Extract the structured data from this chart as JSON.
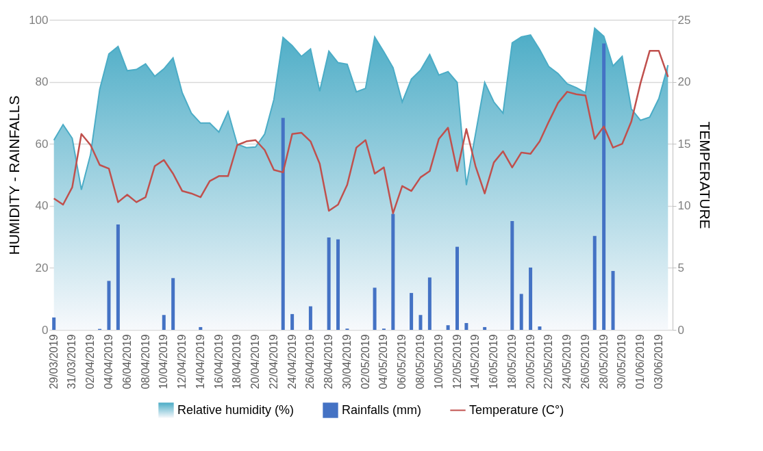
{
  "chart_data": {
    "type": "area",
    "categories": [
      "29/03/2019",
      null,
      "31/03/2019",
      null,
      "02/04/2019",
      null,
      "04/04/2019",
      null,
      "06/04/2019",
      null,
      "08/04/2019",
      null,
      "10/04/2019",
      null,
      "12/04/2019",
      null,
      "14/04/2019",
      null,
      "16/04/2019",
      null,
      "18/04/2019",
      null,
      "20/04/2019",
      null,
      "22/04/2019",
      null,
      "24/04/2019",
      null,
      "26/04/2019",
      null,
      "28/04/2019",
      null,
      "30/04/2019",
      null,
      "02/05/2019",
      null,
      "04/05/2019",
      null,
      "06/05/2019",
      null,
      "08/05/2019",
      null,
      "10/05/2019",
      null,
      "12/05/2019",
      null,
      "14/05/2019",
      null,
      "16/05/2019",
      null,
      "18/05/2019",
      null,
      "20/05/2019",
      null,
      "22/05/2019",
      null,
      "24/05/2019",
      null,
      "26/05/2019",
      null,
      "28/05/2019",
      null,
      "30/05/2019",
      null,
      "01/06/2019",
      null,
      "03/06/2019",
      null
    ],
    "series": [
      {
        "name": "Relative humidity (%)",
        "color": "#4bacc6",
        "values": [
          61.2,
          66.2,
          61.8,
          45.2,
          56.6,
          77.6,
          89,
          91.4,
          83.6,
          84,
          85.8,
          81.8,
          84.2,
          87.7,
          76.5,
          69.9,
          66.7,
          66.7,
          63.8,
          70.4,
          59.9,
          58.8,
          59,
          63.2,
          74.3,
          94.3,
          91.7,
          88.2,
          90.6,
          77,
          89.9,
          86.2,
          85.7,
          76.8,
          77.9,
          94.5,
          89.7,
          84.6,
          73.5,
          80.9,
          83.8,
          88.8,
          82.2,
          83.3,
          79.8,
          46.7,
          63.2,
          79.8,
          73.5,
          69.9,
          92.6,
          94.5,
          95.1,
          90.4,
          84.9,
          82.7,
          79.4,
          78.1,
          76.5,
          97.3,
          94.7,
          85.1,
          88.2,
          71.3,
          67.6,
          68.6,
          74.6,
          85.4
        ]
      },
      {
        "name": "Rainfalls (mm)",
        "type": "bar",
        "color": "#4472c4",
        "values": [
          4.0,
          0,
          0,
          0,
          0,
          0.3,
          15.8,
          34,
          0,
          0,
          0,
          0,
          4.8,
          16.7,
          0,
          0,
          0.9,
          0,
          0,
          0,
          0,
          0,
          0,
          0,
          0,
          68.4,
          5.1,
          0,
          7.6,
          0,
          29.8,
          29.2,
          0.4,
          0,
          0,
          13.6,
          0.4,
          37.4,
          0,
          11.9,
          4.8,
          16.9,
          0,
          1.5,
          26.8,
          2.2,
          0,
          0.9,
          0,
          0,
          35.1,
          11.6,
          20.1,
          1.1,
          0,
          0,
          0,
          0,
          0,
          30.3,
          92.4,
          19.0,
          0,
          0,
          0,
          0,
          0,
          0
        ]
      },
      {
        "name": "Temperature (C°)",
        "type": "line",
        "axis": "y2",
        "color": "#c0504d",
        "values": [
          10.6,
          10.1,
          11.5,
          15.8,
          14.9,
          13.3,
          13.0,
          10.3,
          10.9,
          10.3,
          10.7,
          13.2,
          13.7,
          12.6,
          11.2,
          11.0,
          10.7,
          12.0,
          12.4,
          12.4,
          14.9,
          15.2,
          15.3,
          14.5,
          12.9,
          12.7,
          15.8,
          15.9,
          15.2,
          13.4,
          9.6,
          10.1,
          11.7,
          14.7,
          15.3,
          12.6,
          13.1,
          9.4,
          11.6,
          11.2,
          12.3,
          12.8,
          15.4,
          16.3,
          12.8,
          16.2,
          13.2,
          11.0,
          13.5,
          14.4,
          13.1,
          14.3,
          14.2,
          15.2,
          16.8,
          18.3,
          19.2,
          19.0,
          18.9,
          15.4,
          16.4,
          14.7,
          15.0,
          16.8,
          19.9,
          22.5,
          22.5,
          20.4
        ]
      }
    ],
    "ylabel": "HUMIDITY - RAINFALLS",
    "y2label": "TEMPERATURE",
    "ylim": [
      0,
      100
    ],
    "yticks": [
      0,
      20,
      40,
      60,
      80,
      100
    ],
    "y2lim": [
      0,
      25
    ],
    "y2ticks": [
      0,
      5,
      10,
      15,
      20,
      25
    ],
    "grid": "y",
    "legend": "bottom"
  }
}
